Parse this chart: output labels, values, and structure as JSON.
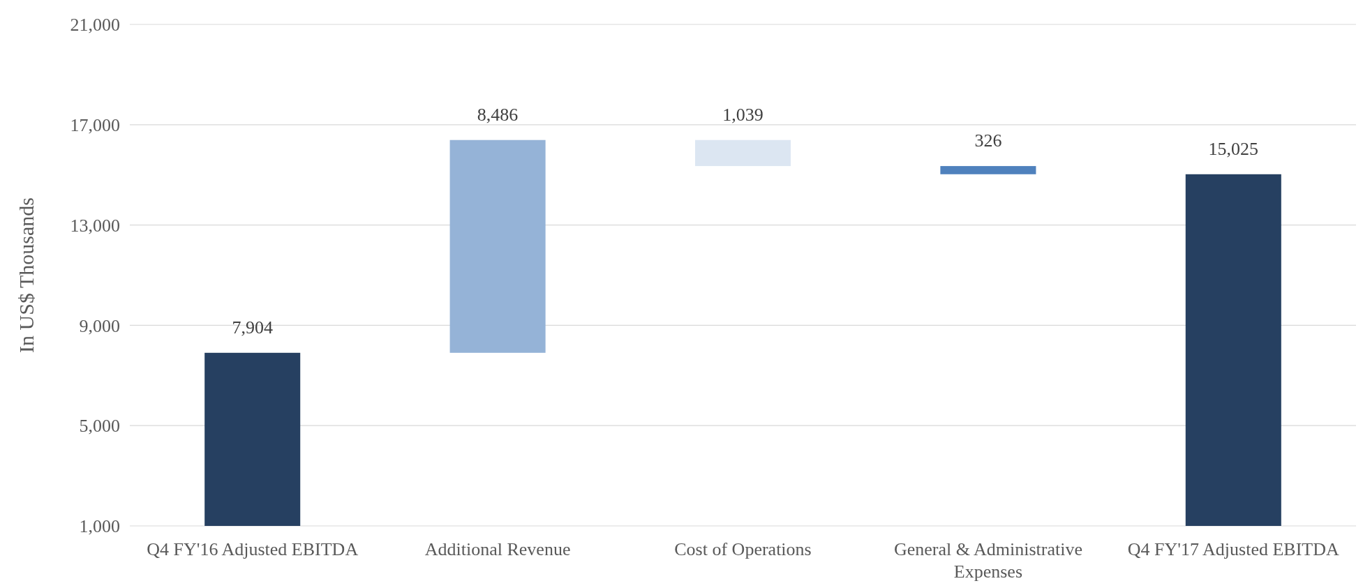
{
  "chart_data": {
    "type": "bar",
    "ylabel": "In US$ Thousands",
    "categories": [
      "Q4 FY'16 Adjusted EBITDA",
      "Additional Revenue",
      "Cost of Operations",
      "General & Administrative Expenses",
      "Q4 FY'17 Adjusted EBITDA"
    ],
    "values": [
      6904,
      8486,
      -1039,
      -326,
      14025
    ],
    "base": [
      1000,
      7904,
      16390,
      15351,
      1000
    ],
    "value_labels": [
      "7,904",
      "8,486",
      "1,039",
      "326",
      "15,025"
    ],
    "colors": [
      "#264061",
      "#95b3d7",
      "#dce6f2",
      "#4f81bd",
      "#264061"
    ],
    "ylim": [
      1000,
      21000
    ],
    "yticks": [
      {
        "value": 1000,
        "label": "1,000"
      },
      {
        "value": 5000,
        "label": "5,000"
      },
      {
        "value": 9000,
        "label": "9,000"
      },
      {
        "value": 13000,
        "label": "13,000"
      },
      {
        "value": 17000,
        "label": "17,000"
      },
      {
        "value": 21000,
        "label": "21,000"
      }
    ],
    "grid": "y"
  }
}
